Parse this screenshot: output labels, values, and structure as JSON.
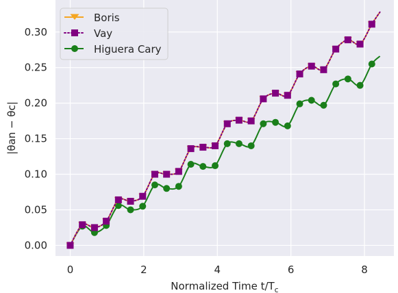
{
  "chart_data": {
    "type": "line",
    "xlabel": "Normalized Time t/T",
    "xlabel_sub": "c",
    "ylabel": "|θan − θc|",
    "xlim": [
      -0.4,
      8.8
    ],
    "ylim": [
      -0.015,
      0.345
    ],
    "x_ticks": [
      0,
      2,
      4,
      6,
      8
    ],
    "y_ticks": [
      0.0,
      0.05,
      0.1,
      0.15,
      0.2,
      0.25,
      0.3
    ],
    "x_tick_labels": [
      "0",
      "2",
      "4",
      "6",
      "8"
    ],
    "y_tick_labels": [
      "0.00",
      "0.05",
      "0.10",
      "0.15",
      "0.20",
      "0.25",
      "0.30"
    ],
    "grid": true,
    "legend_placement": "top-left",
    "series": [
      {
        "name": "Boris",
        "color": "#f5a623",
        "linestyle": "solid",
        "marker": "triangle-down",
        "x": [
          0.0,
          0.33,
          0.66,
          0.98,
          1.31,
          1.64,
          1.97,
          2.3,
          2.62,
          2.95,
          3.28,
          3.61,
          3.94,
          4.27,
          4.59,
          4.92,
          5.25,
          5.58,
          5.91,
          6.24,
          6.56,
          6.89,
          7.22,
          7.55,
          7.88,
          8.2,
          8.42
        ],
        "y": [
          0.0,
          0.029,
          0.025,
          0.034,
          0.064,
          0.062,
          0.069,
          0.1,
          0.1,
          0.104,
          0.136,
          0.138,
          0.14,
          0.171,
          0.176,
          0.175,
          0.206,
          0.214,
          0.211,
          0.241,
          0.252,
          0.247,
          0.276,
          0.289,
          0.283,
          0.311,
          0.328
        ]
      },
      {
        "name": "Vay",
        "color": "#800080",
        "linestyle": "dotted",
        "marker": "square",
        "x": [
          0.0,
          0.33,
          0.66,
          0.98,
          1.31,
          1.64,
          1.97,
          2.3,
          2.62,
          2.95,
          3.28,
          3.61,
          3.94,
          4.27,
          4.59,
          4.92,
          5.25,
          5.58,
          5.91,
          6.24,
          6.56,
          6.89,
          7.22,
          7.55,
          7.88,
          8.2,
          8.42
        ],
        "y": [
          0.0,
          0.029,
          0.025,
          0.034,
          0.064,
          0.062,
          0.069,
          0.1,
          0.1,
          0.104,
          0.136,
          0.138,
          0.14,
          0.171,
          0.176,
          0.175,
          0.206,
          0.214,
          0.211,
          0.241,
          0.252,
          0.247,
          0.276,
          0.289,
          0.283,
          0.311,
          0.328
        ]
      },
      {
        "name": "Higuera Cary",
        "color": "#1a7f1a",
        "linestyle": "solid",
        "marker": "circle",
        "x": [
          0.0,
          0.33,
          0.66,
          0.98,
          1.31,
          1.64,
          1.97,
          2.3,
          2.62,
          2.95,
          3.28,
          3.61,
          3.94,
          4.27,
          4.59,
          4.92,
          5.25,
          5.58,
          5.91,
          6.24,
          6.56,
          6.89,
          7.22,
          7.55,
          7.88,
          8.2,
          8.42
        ],
        "y": [
          0.0,
          0.027,
          0.018,
          0.028,
          0.056,
          0.05,
          0.055,
          0.085,
          0.08,
          0.083,
          0.114,
          0.111,
          0.112,
          0.143,
          0.143,
          0.14,
          0.171,
          0.173,
          0.168,
          0.199,
          0.204,
          0.197,
          0.227,
          0.234,
          0.225,
          0.255,
          0.266
        ]
      }
    ]
  },
  "legend": {
    "items": [
      "Boris",
      "Vay",
      "Higuera Cary"
    ]
  }
}
